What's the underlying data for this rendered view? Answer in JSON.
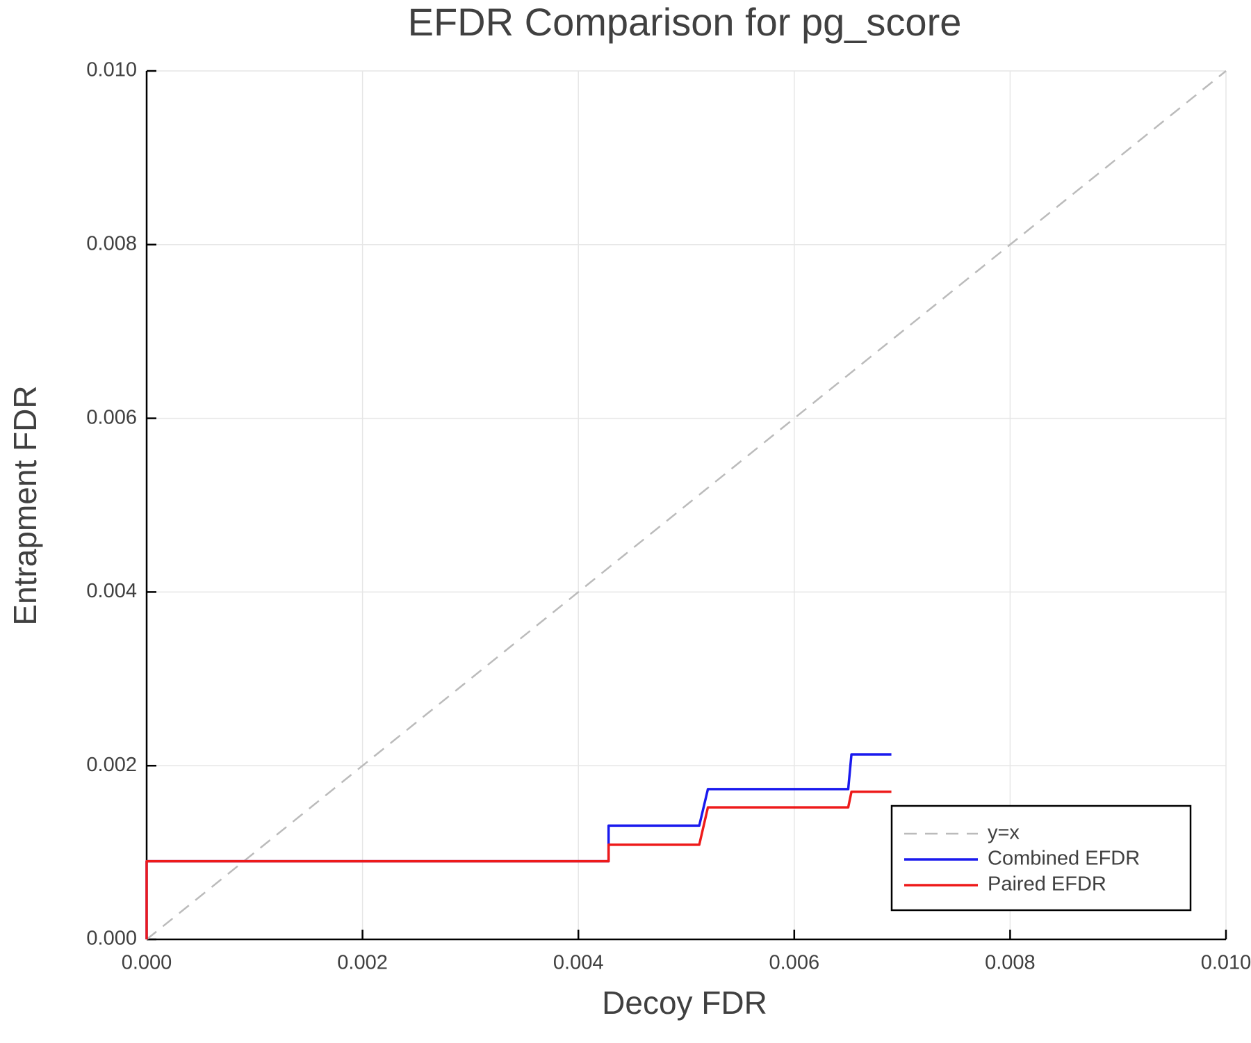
{
  "chart_data": {
    "type": "line",
    "title": "EFDR Comparison for pg_score",
    "x_label": "Decoy FDR",
    "y_label": "Entrapment FDR",
    "xlim": [
      0,
      0.01
    ],
    "ylim": [
      0,
      0.01
    ],
    "xticks": [
      {
        "value": 0,
        "label": "0.000"
      },
      {
        "value": 0.002,
        "label": "0.002"
      },
      {
        "value": 0.004,
        "label": "0.004"
      },
      {
        "value": 0.006,
        "label": "0.006"
      },
      {
        "value": 0.008,
        "label": "0.008"
      },
      {
        "value": 0.01,
        "label": "0.010"
      }
    ],
    "yticks": [
      {
        "value": 0,
        "label": "0.000"
      },
      {
        "value": 0.002,
        "label": "0.002"
      },
      {
        "value": 0.004,
        "label": "0.004"
      },
      {
        "value": 0.006,
        "label": "0.006"
      },
      {
        "value": 0.008,
        "label": "0.008"
      },
      {
        "value": 0.01,
        "label": "0.010"
      }
    ],
    "grid": true,
    "legend": "lower right",
    "series": [
      {
        "name": "y=x",
        "color": "#bbbbbb",
        "dashed": true,
        "x": [
          0,
          0.01
        ],
        "values": [
          0,
          0.01
        ]
      },
      {
        "name": "Combined EFDR",
        "color": "#1a1aee",
        "x": [
          0,
          0,
          0.00428,
          0.00428,
          0.00512,
          0.0052,
          0.0065,
          0.00653,
          0.0069
        ],
        "values": [
          0,
          0.0009,
          0.0009,
          0.00131,
          0.00131,
          0.00173,
          0.00173,
          0.00213,
          0.00213
        ]
      },
      {
        "name": "Paired EFDR",
        "color": "#ee1a1a",
        "x": [
          0,
          0,
          0.00428,
          0.00428,
          0.00512,
          0.0052,
          0.0065,
          0.00653,
          0.0069
        ],
        "values": [
          0,
          0.0009,
          0.0009,
          0.00109,
          0.00109,
          0.00152,
          0.00152,
          0.0017,
          0.0017
        ]
      }
    ]
  }
}
